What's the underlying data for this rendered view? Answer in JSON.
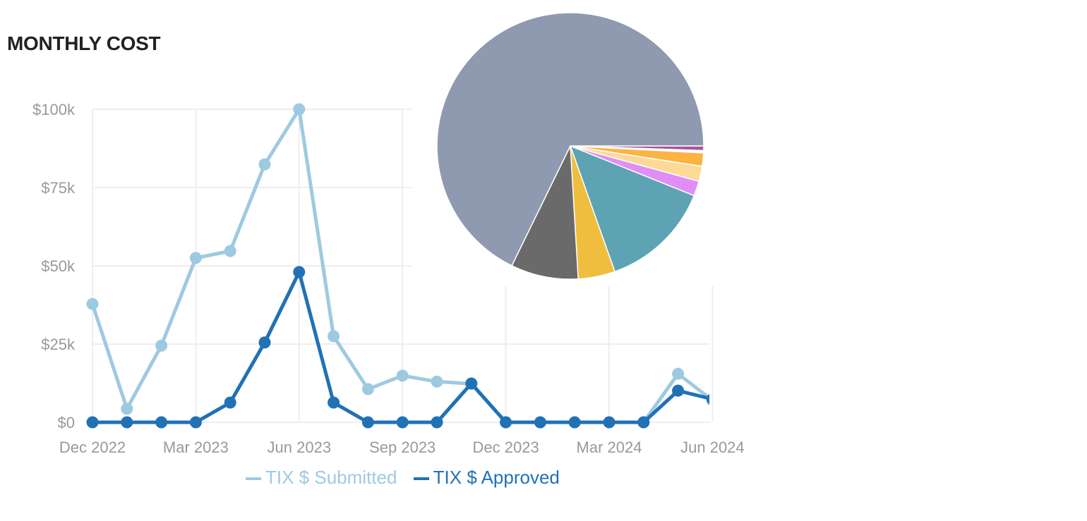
{
  "title": "MONTHLY COST",
  "chart_data": [
    {
      "type": "line",
      "x": [
        "Dec 2022",
        "Jan 2023",
        "Feb 2023",
        "Mar 2023",
        "Apr 2023",
        "May 2023",
        "Jun 2023",
        "Jul 2023",
        "Aug 2023",
        "Sep 2023",
        "Oct 2023",
        "Nov 2023",
        "Dec 2023",
        "Jan 2024",
        "Feb 2024",
        "Mar 2024",
        "Apr 2024",
        "May 2024",
        "Jun 2024"
      ],
      "x_tick_labels": [
        "Dec 2022",
        "Mar 2023",
        "Jun 2023",
        "Sep 2023",
        "Dec 2023",
        "Mar 2024",
        "Jun 2024"
      ],
      "y_tick_labels": [
        "$0",
        "$25k",
        "$50k",
        "$75k",
        "$100k"
      ],
      "y_ticks": [
        0,
        25000,
        50000,
        75000,
        100000
      ],
      "ylim": [
        0,
        100000
      ],
      "grid": true,
      "legend_position": "bottom",
      "series": [
        {
          "name": "TIX $ Submitted",
          "color": "#9ecae1",
          "values": [
            37800,
            4300,
            24500,
            52500,
            54700,
            82400,
            100000,
            27500,
            10600,
            14900,
            13000,
            12300,
            0,
            0,
            0,
            0,
            0,
            15500,
            7000
          ]
        },
        {
          "name": "TIX $ Approved",
          "color": "#2171b5",
          "values": [
            0,
            0,
            0,
            0,
            6300,
            25500,
            48000,
            6300,
            0,
            0,
            0,
            12400,
            0,
            0,
            0,
            0,
            0,
            10100,
            7400
          ]
        }
      ]
    },
    {
      "type": "pie",
      "slices": [
        {
          "value": 0.56,
          "color": "#a9549f"
        },
        {
          "value": 0.14,
          "color": "#f4c2e8"
        },
        {
          "value": 0.14,
          "color": "#fde0b0"
        },
        {
          "value": 1.61,
          "color": "#fbb441"
        },
        {
          "value": 1.83,
          "color": "#fdd998"
        },
        {
          "value": 1.81,
          "color": "#e08ef5"
        },
        {
          "value": 13.5,
          "color": "#5da3b3"
        },
        {
          "value": 4.47,
          "color": "#efbe3e"
        },
        {
          "value": 8.17,
          "color": "#6a6a6a"
        },
        {
          "value": 67.78,
          "color": "#8f99b0"
        }
      ]
    }
  ]
}
